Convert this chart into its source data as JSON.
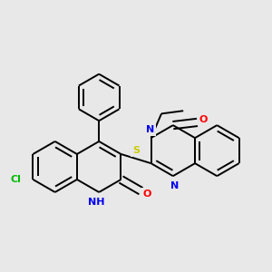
{
  "bg_color": "#e8e8e8",
  "atom_colors": {
    "C": "#000000",
    "N": "#0000ee",
    "O": "#ff0000",
    "S": "#cccc00",
    "Cl": "#00bb00",
    "H": "#000000"
  },
  "bond_color": "#000000",
  "lw": 1.4,
  "fig_size": [
    3.0,
    3.0
  ],
  "dpi": 100,
  "r_ring": 0.44,
  "sep": 0.065
}
